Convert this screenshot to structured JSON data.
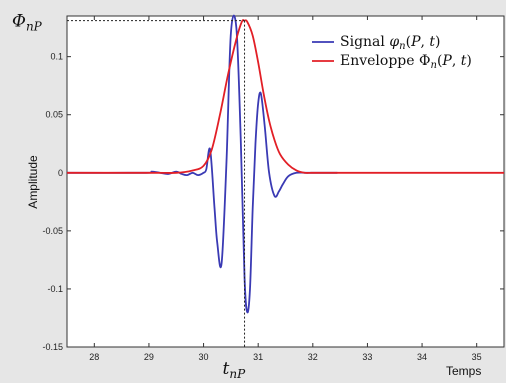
{
  "chart_data": {
    "type": "line",
    "xlabel": "Temps",
    "ylabel": "Amplitude",
    "xlim": [
      27.5,
      35.5
    ],
    "ylim": [
      -0.15,
      0.135
    ],
    "xticks": [
      28,
      29,
      30,
      31,
      32,
      33,
      34,
      35
    ],
    "yticks": [
      -0.15,
      -0.1,
      -0.05,
      0,
      0.05,
      0.1
    ],
    "ytick_labels": [
      "-0.15",
      "-0.1",
      "-0.05",
      "0",
      "0.05",
      "0.1"
    ],
    "grid": false,
    "legend_position": "top-right",
    "series": [
      {
        "name": "Signal φn(P,t)",
        "color": "#3a3ab4",
        "x": [
          27.5,
          28.95,
          29.05,
          29.2,
          29.35,
          29.5,
          29.6,
          29.7,
          29.8,
          29.9,
          30.0,
          30.05,
          30.12,
          30.2,
          30.25,
          30.33,
          30.42,
          30.5,
          30.6,
          30.68,
          30.75,
          30.8,
          30.85,
          30.9,
          30.95,
          31.0,
          31.05,
          31.12,
          31.2,
          31.3,
          31.38,
          31.45,
          31.55,
          31.7,
          31.85,
          32.0,
          32.2,
          32.45
        ],
        "y": [
          0.0,
          0.0,
          0.001,
          0.0,
          -0.001,
          0.001,
          -0.001,
          -0.002,
          0.0,
          -0.002,
          0.0,
          0.003,
          0.02,
          -0.03,
          -0.06,
          -0.078,
          0.01,
          0.12,
          0.125,
          0.03,
          -0.09,
          -0.12,
          -0.1,
          -0.03,
          0.025,
          0.06,
          0.068,
          0.04,
          0.0,
          -0.02,
          -0.016,
          -0.01,
          -0.003,
          0.0,
          0.0,
          0.0,
          0.0,
          0.0
        ]
      },
      {
        "name": "Enveloppe Φn(P,t)",
        "color": "#e21f26",
        "x": [
          27.5,
          29.0,
          29.5,
          29.8,
          30.0,
          30.15,
          30.3,
          30.45,
          30.6,
          30.7,
          30.75,
          30.8,
          30.9,
          31.0,
          31.1,
          31.2,
          31.3,
          31.4,
          31.55,
          31.7,
          31.85,
          32.0,
          32.3,
          35.5
        ],
        "y": [
          0.0,
          0.0,
          0.0,
          0.002,
          0.006,
          0.02,
          0.05,
          0.085,
          0.115,
          0.13,
          0.131,
          0.13,
          0.118,
          0.095,
          0.068,
          0.045,
          0.028,
          0.016,
          0.007,
          0.002,
          0.0,
          0.0,
          0.0,
          0.0
        ]
      }
    ],
    "annotations": {
      "peak_label": "ΦnP",
      "time_label": "tnP",
      "peak_x": 30.75,
      "peak_y": 0.131
    }
  }
}
